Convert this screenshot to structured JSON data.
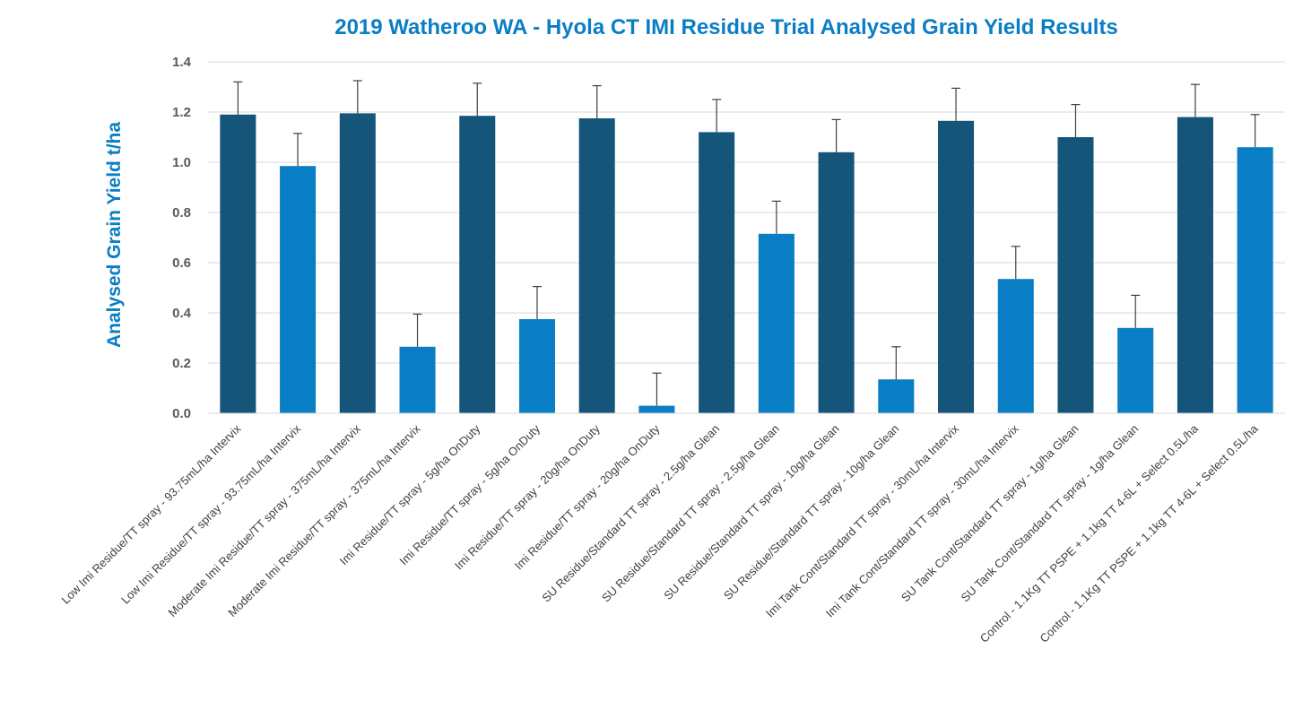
{
  "colors": {
    "dark_bar": "#16557A",
    "light_bar": "#0A7EC5",
    "title": "#0A7EC5",
    "grid": "#D9D9D9",
    "axis_text": "#595959",
    "error_bar": "#404040"
  },
  "chart_data": {
    "type": "bar",
    "title": "2019 Watheroo WA - Hyola CT IMI Residue Trial Analysed Grain Yield Results",
    "xlabel": "",
    "ylabel": "Analysed Grain Yield t/ha",
    "ylim": [
      0,
      1.4
    ],
    "yticks": [
      "0.0",
      "0.2",
      "0.4",
      "0.6",
      "0.8",
      "1.0",
      "1.2",
      "1.4"
    ],
    "grid": true,
    "legend": "none",
    "categories": [
      "Low Imi Residue/TT spray - 93.75mL/ha Intervix",
      "Low Imi Residue/TT spray - 93.75mL/ha Intervix",
      "Moderate Imi Residue/TT spray - 375mL/ha Intervix",
      "Moderate Imi Residue/TT spray - 375mL/ha Intervix",
      "Imi Residue/TT spray - 5g/ha OnDuty",
      "Imi Residue/TT spray - 5g/ha OnDuty",
      "Imi Residue/TT spray - 20g/ha OnDuty",
      "Imi Residue/TT spray - 20g/ha OnDuty",
      "SU Residue/Standard TT spray - 2.5g/ha Glean",
      "SU Residue/Standard TT spray - 2.5g/ha Glean",
      "SU Residue/Standard TT spray - 10g/ha Glean",
      "SU Residue/Standard TT spray - 10g/ha Glean",
      "Imi Tank Cont/Standard TT spray - 30mL/ha Intervix",
      "Imi Tank Cont/Standard TT spray - 30mL/ha Intervix",
      "SU Tank Cont/Standard TT spray - 1g/ha Glean",
      "SU Tank Cont/Standard TT spray - 1g/ha Glean",
      "Control - 1.1Kg TT PSPE + 1.1kg TT 4-6L + Select 0.5L/ha",
      "Control - 1.1Kg TT PSPE + 1.1kg TT 4-6L + Select 0.5L/ha"
    ],
    "values": [
      1.19,
      0.985,
      1.195,
      0.265,
      1.185,
      0.375,
      1.175,
      0.03,
      1.12,
      0.715,
      1.04,
      0.135,
      1.165,
      0.535,
      1.1,
      0.34,
      1.18,
      1.06
    ],
    "error": [
      0.13,
      0.13,
      0.13,
      0.13,
      0.13,
      0.13,
      0.13,
      0.13,
      0.13,
      0.13,
      0.13,
      0.13,
      0.13,
      0.13,
      0.13,
      0.13,
      0.13,
      0.13
    ],
    "bar_colors": [
      "dark",
      "light",
      "dark",
      "light",
      "dark",
      "light",
      "dark",
      "light",
      "dark",
      "light",
      "dark",
      "light",
      "dark",
      "light",
      "dark",
      "light",
      "dark",
      "light"
    ]
  }
}
